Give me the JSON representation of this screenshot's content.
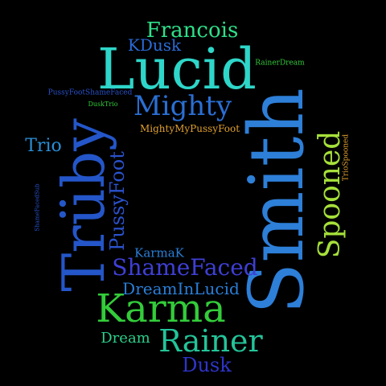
{
  "background": "#000000",
  "words": {
    "lucid": {
      "text": "Lucid",
      "color": "#2ed6c9"
    },
    "smith": {
      "text": "Smith",
      "color": "#2d7fd8"
    },
    "truby": {
      "text": "Trüby",
      "color": "#2456c9"
    },
    "karma": {
      "text": "Karma",
      "color": "#33cc3a"
    },
    "rainer": {
      "text": "Rainer",
      "color": "#23c49a"
    },
    "mighty": {
      "text": "Mighty",
      "color": "#2a6fd4"
    },
    "francois": {
      "text": "Francois",
      "color": "#2ee08a"
    },
    "spooned": {
      "text": "Spooned",
      "color": "#a6e03a"
    },
    "shamefaced": {
      "text": "ShameFaced",
      "color": "#3f3fd6"
    },
    "pussyfoot": {
      "text": "PussyFoot",
      "color": "#2a52cc"
    },
    "dreaminlucid": {
      "text": "DreamInLucid",
      "color": "#2a7fd8"
    },
    "dusk": {
      "text": "Dusk",
      "color": "#2e35c9"
    },
    "dream": {
      "text": "Dream",
      "color": "#2bcf8a"
    },
    "kdusk": {
      "text": "KDusk",
      "color": "#2a6bd6"
    },
    "trio": {
      "text": "Trio",
      "color": "#2a8fd8"
    },
    "karmak": {
      "text": "KarmaK",
      "color": "#2a7fd8"
    },
    "mightymypussyfoot": {
      "text": "MightyMyPussyFoot",
      "color": "#e0a030"
    },
    "rainerdream": {
      "text": "RainerDream",
      "color": "#33cc3a"
    },
    "pussyfootshamefaced": {
      "text": "PussyFootShameFaced",
      "color": "#2a52cc"
    },
    "dusktrio": {
      "text": "DuskTrio",
      "color": "#33cc3a"
    },
    "triospooned": {
      "text": "TrioSpooned",
      "color": "#e0a030"
    },
    "shamefacedsub": {
      "text": "ShameFacedSub",
      "color": "#2a52cc"
    }
  }
}
